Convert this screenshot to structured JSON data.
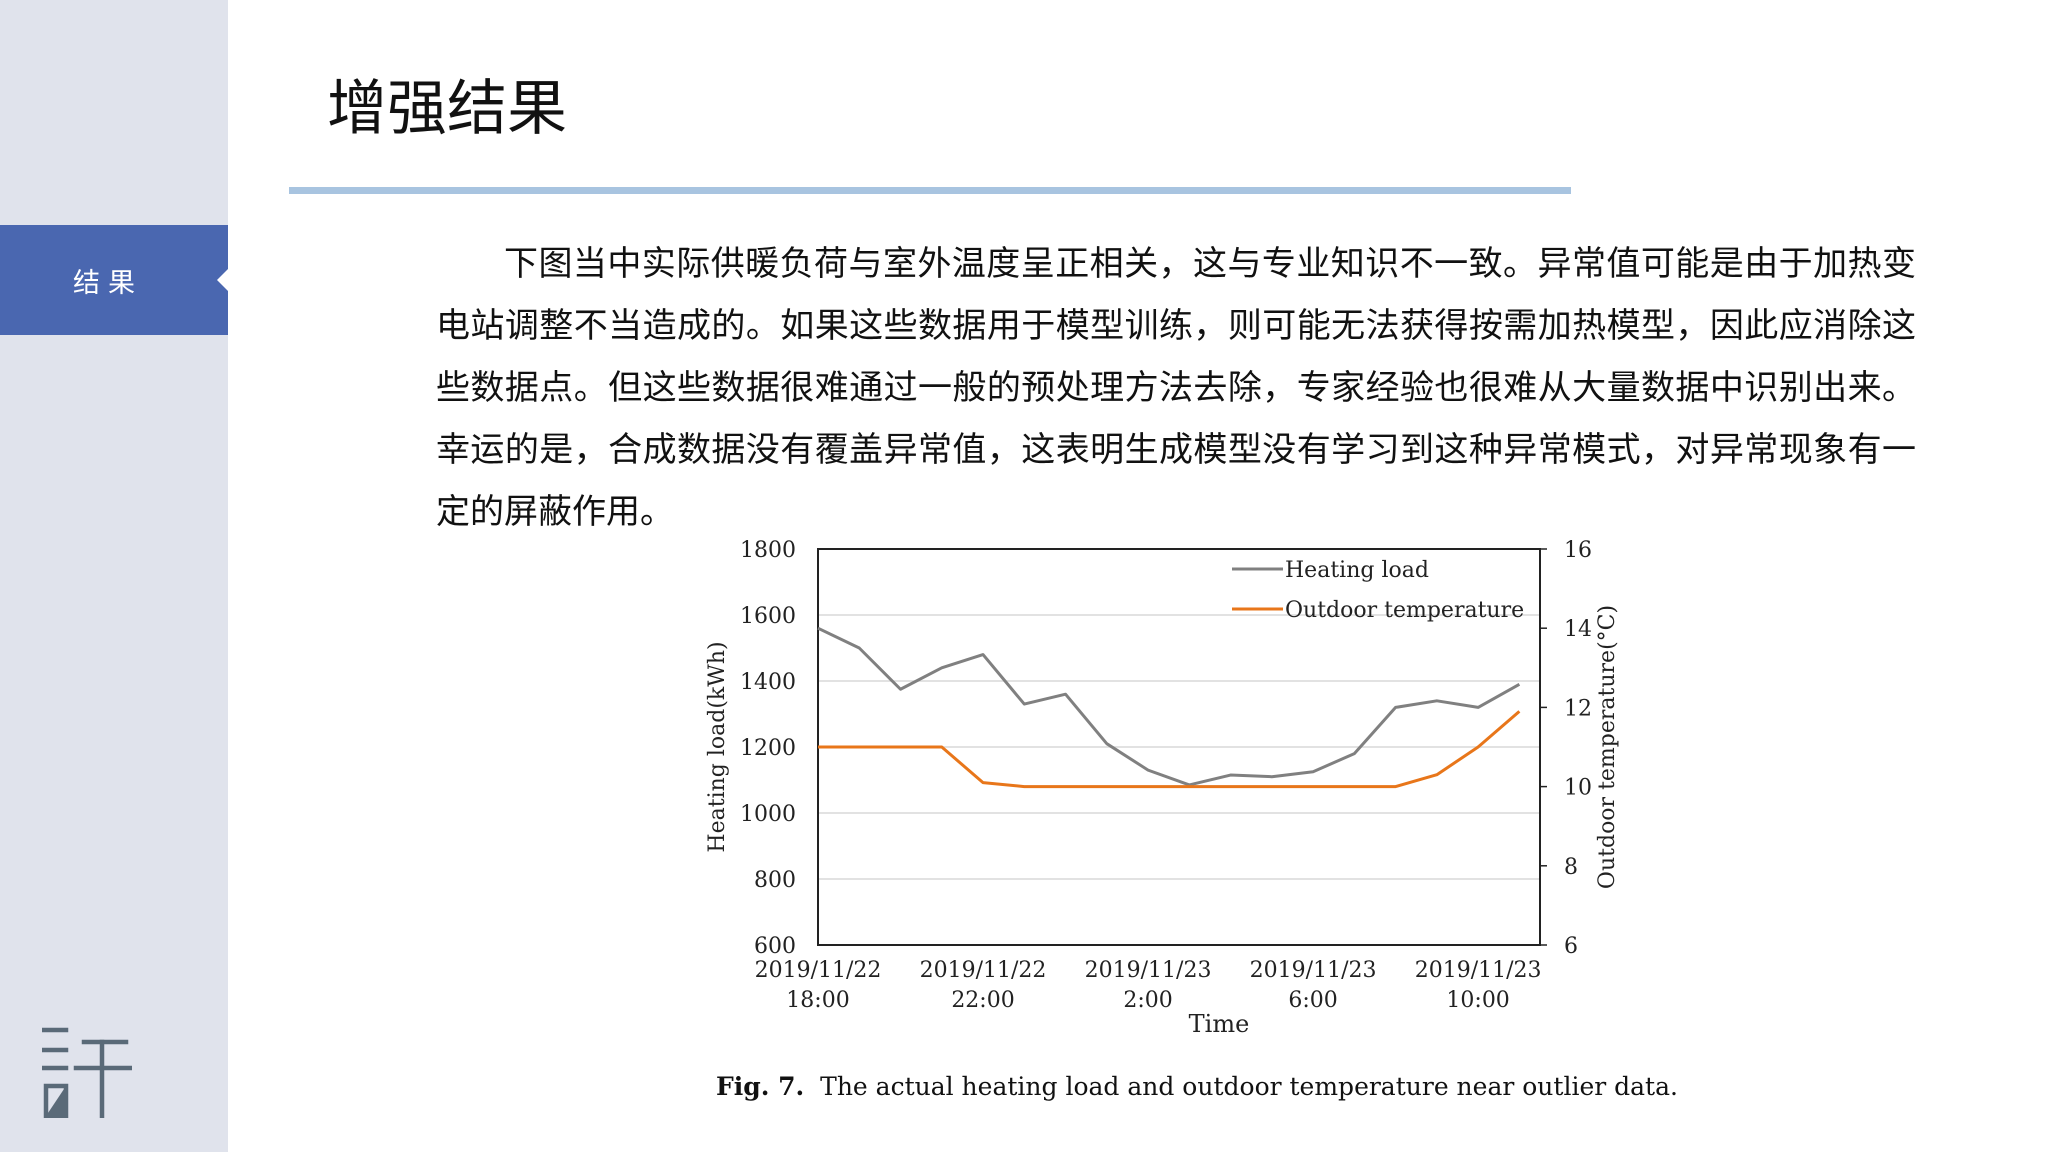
{
  "sidebar": {
    "nav_item": "结果"
  },
  "page": {
    "title": "增强结果",
    "paragraph": "下图当中实际供暖负荷与室外温度呈正相关，这与专业知识不一致。异常值可能是由于加热变电站调整不当造成的。如果这些数据用于模型训练，则可能无法获得按需加热模型，因此应消除这些数据点。但这些数据很难通过一般的预处理方法去除，专家经验也很难从大量数据中识别出来。幸运的是，合成数据没有覆盖异常值，这表明生成模型没有学习到这种异常模式，对异常现象有一定的屏蔽作用。"
  },
  "figure": {
    "caption_prefix": "Fig. 7.",
    "caption_text": "The actual heating load and outdoor temperature near outlier data."
  },
  "colors": {
    "sidebar_bg": "#e0e3ec",
    "nav_active": "#4a67b0",
    "title_rule": "#a8c4e0",
    "heating_series": "#808080",
    "temperature_series": "#e8761a"
  },
  "chart_data": {
    "type": "line",
    "xlabel": "Time",
    "ylabel_left": "Heating load(kWh)",
    "ylabel_right": "Outdoor temperature(°C)",
    "ylim_left": [
      600,
      1800
    ],
    "yticks_left": [
      600,
      800,
      1000,
      1200,
      1400,
      1600,
      1800
    ],
    "ylim_right": [
      6,
      16
    ],
    "yticks_right": [
      6,
      8,
      10,
      12,
      14,
      16
    ],
    "xtick_labels": [
      [
        "2019/11/22",
        "18:00"
      ],
      [
        "2019/11/22",
        "22:00"
      ],
      [
        "2019/11/23",
        "2:00"
      ],
      [
        "2019/11/23",
        "6:00"
      ],
      [
        "2019/11/23",
        "10:00"
      ]
    ],
    "x": [
      "2019/11/22 18:00",
      "2019/11/22 19:00",
      "2019/11/22 20:00",
      "2019/11/22 21:00",
      "2019/11/22 22:00",
      "2019/11/22 23:00",
      "2019/11/23 0:00",
      "2019/11/23 1:00",
      "2019/11/23 2:00",
      "2019/11/23 3:00",
      "2019/11/23 4:00",
      "2019/11/23 5:00",
      "2019/11/23 6:00",
      "2019/11/23 7:00",
      "2019/11/23 8:00",
      "2019/11/23 9:00",
      "2019/11/23 10:00",
      "2019/11/23 11:00"
    ],
    "grid": true,
    "legend_position": "top-right",
    "series": [
      {
        "name": "Heating load",
        "axis": "left",
        "values": [
          1560,
          1500,
          1375,
          1440,
          1480,
          1330,
          1360,
          1210,
          1130,
          1085,
          1115,
          1110,
          1125,
          1180,
          1320,
          1340,
          1320,
          1390
        ]
      },
      {
        "name": "Outdoor temperature",
        "axis": "right",
        "values": [
          11,
          11,
          11,
          11,
          10.1,
          10,
          10,
          10,
          10,
          10,
          10,
          10,
          10,
          10,
          10,
          10.3,
          11,
          11.9
        ]
      }
    ]
  }
}
